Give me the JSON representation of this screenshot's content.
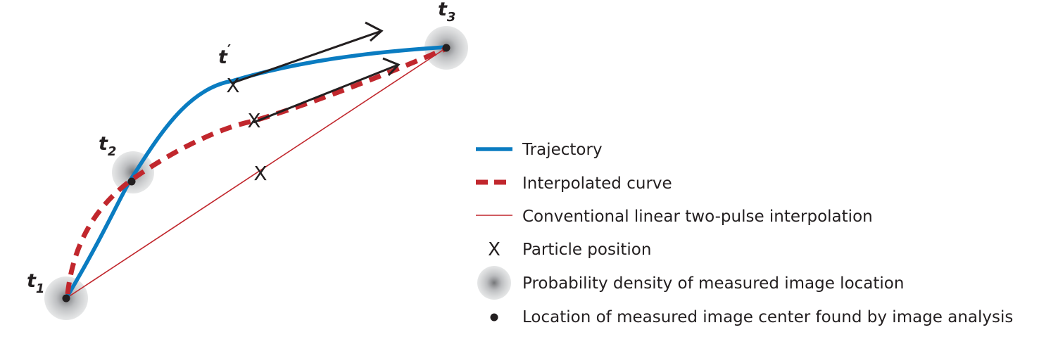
{
  "points": {
    "t1": {
      "symbol": "t",
      "sub": "1"
    },
    "t2": {
      "symbol": "t",
      "sub": "2"
    },
    "t3": {
      "symbol": "t",
      "sub": "3"
    },
    "t_prime": {
      "symbol": "t",
      "sup": "′"
    }
  },
  "markers": {
    "particle": "X"
  },
  "legend": {
    "items": [
      {
        "label": "Trajectory"
      },
      {
        "label": "Interpolated curve"
      },
      {
        "label": "Conventional linear two-pulse interpolation"
      },
      {
        "label": "Particle position",
        "symbol": "X"
      },
      {
        "label": "Probability density of measured image location"
      },
      {
        "label": "Location of measured image center found by image analysis"
      }
    ]
  },
  "colors": {
    "trajectory": "#0a7cc1",
    "interpolated": "#c1272d",
    "linear": "#c1272d",
    "ink": "#231f20"
  }
}
